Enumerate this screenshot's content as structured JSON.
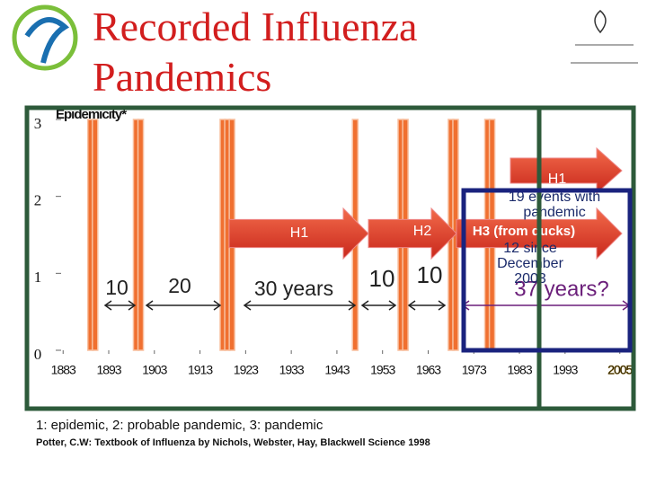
{
  "chart_data": {
    "type": "bar",
    "title": "Recorded Influenza Pandemics",
    "y_label": "Epidemicity*",
    "x": [
      1889,
      1890,
      1899,
      1900,
      1918,
      1919,
      1920,
      1947,
      1957,
      1958,
      1968,
      1969,
      1976,
      1977
    ],
    "values": [
      3,
      3,
      3,
      3,
      3,
      3,
      3,
      3,
      3,
      3,
      3,
      3,
      3,
      3
    ],
    "color": "#f07030",
    "xlim": [
      1880,
      2008
    ],
    "ylim": [
      0,
      3
    ],
    "yticks": [
      0,
      1,
      2,
      3
    ],
    "xticks": [
      1883,
      1893,
      1903,
      1913,
      1923,
      1933,
      1943,
      1953,
      1963,
      1973,
      1983,
      1993,
      2005
    ],
    "arrows": [
      {
        "label": "H1"
      },
      {
        "label": "H2"
      },
      {
        "label": "H3 (from ducks)"
      },
      {
        "label": "H1"
      }
    ],
    "spans": [
      "10",
      "20",
      "30 years",
      "10",
      "10",
      "37 years?"
    ],
    "notes": [
      "19 events with pandemic",
      "12 since December 2003"
    ],
    "legend_note": "1: epidemic, 2: probable pandemic, 3: pandemic",
    "source": "Potter, C.W: Textbook of Influenza by Nichols, Webster, Hay, Blackwell Science 1998"
  }
}
